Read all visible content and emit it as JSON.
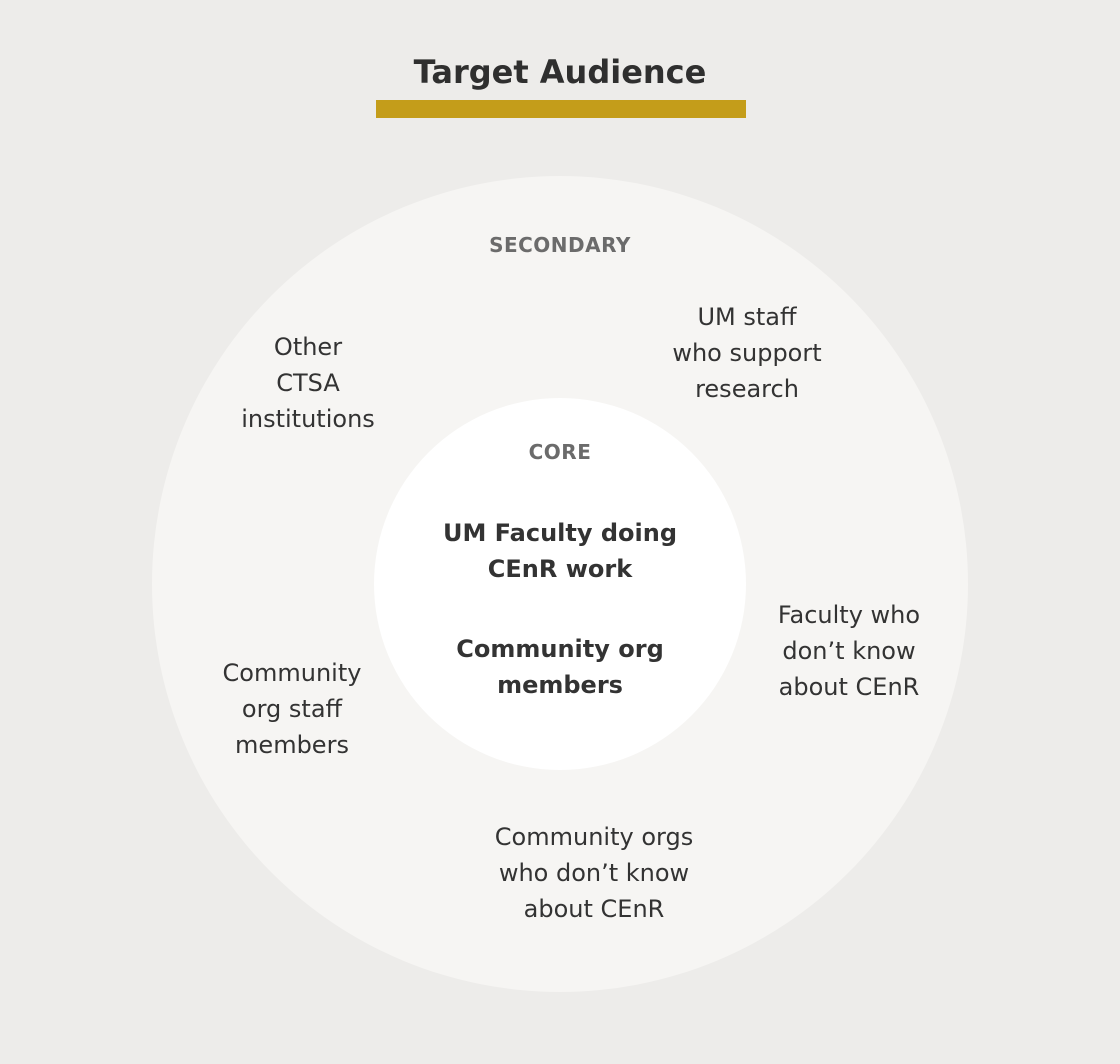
{
  "title": "Target Audience",
  "colors": {
    "background": "#edecea",
    "outer_ring": "#f6f5f3",
    "inner_circle": "#ffffff",
    "accent": "#c49d1a",
    "ring_label": "#6b6b6b",
    "text": "#333333"
  },
  "secondary": {
    "label": "SECONDARY",
    "groups": [
      "Other\nCTSA\ninstitutions",
      "UM staff\nwho support\nresearch",
      "Faculty who\ndon’t know\nabout CEnR",
      "Community orgs\nwho don’t know\nabout CEnR",
      "Community\norg staff\nmembers"
    ]
  },
  "core": {
    "label": "CORE",
    "groups": [
      "UM Faculty doing\nCEnR work",
      "Community org\nmembers"
    ]
  }
}
